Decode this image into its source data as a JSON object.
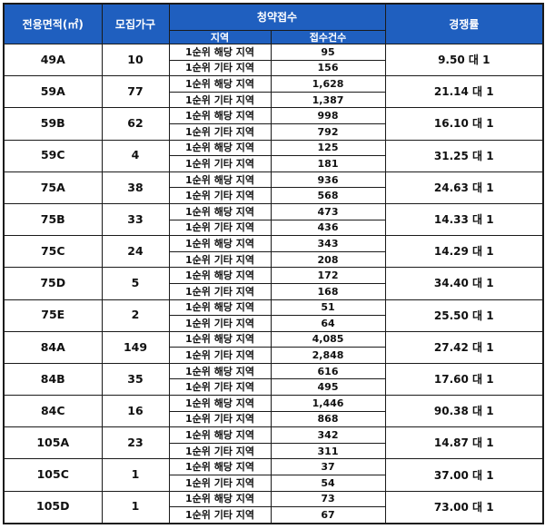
{
  "headers": {
    "area": "전용면적(㎡)",
    "households": "모집가구",
    "subscription": "청약접수",
    "region": "지역",
    "applications": "접수건수",
    "competition": "경쟁률"
  },
  "rows": [
    {
      "type": "49A",
      "households": "10",
      "local_label": "1순위 해당 지역",
      "local_count": "95",
      "other_label": "1순위 기타 지역",
      "other_count": "156",
      "rate": "9.50 대 1"
    },
    {
      "type": "59A",
      "households": "77",
      "local_label": "1순위 해당 지역",
      "local_count": "1,628",
      "other_label": "1순위 기타 지역",
      "other_count": "1,387",
      "rate": "21.14 대 1"
    },
    {
      "type": "59B",
      "households": "62",
      "local_label": "1순위 해당 지역",
      "local_count": "998",
      "other_label": "1순위 기타 지역",
      "other_count": "792",
      "rate": "16.10 대 1"
    },
    {
      "type": "59C",
      "households": "4",
      "local_label": "1순위 해당 지역",
      "local_count": "125",
      "other_label": "1순위 기타 지역",
      "other_count": "181",
      "rate": "31.25 대 1"
    },
    {
      "type": "75A",
      "households": "38",
      "local_label": "1순위 해당 지역",
      "local_count": "936",
      "other_label": "1순위 기타 지역",
      "other_count": "568",
      "rate": "24.63 대 1"
    },
    {
      "type": "75B",
      "households": "33",
      "local_label": "1순위 해당 지역",
      "local_count": "473",
      "other_label": "1순위 기타 지역",
      "other_count": "436",
      "rate": "14.33 대 1"
    },
    {
      "type": "75C",
      "households": "24",
      "local_label": "1순위 해당 지역",
      "local_count": "343",
      "other_label": "1순위 기타 지역",
      "other_count": "208",
      "rate": "14.29 대 1"
    },
    {
      "type": "75D",
      "households": "5",
      "local_label": "1순위 해당 지역",
      "local_count": "172",
      "other_label": "1순위 기타 지역",
      "other_count": "168",
      "rate": "34.40 대 1"
    },
    {
      "type": "75E",
      "households": "2",
      "local_label": "1순위 해당 지역",
      "local_count": "51",
      "other_label": "1순위 기타 지역",
      "other_count": "64",
      "rate": "25.50 대 1"
    },
    {
      "type": "84A",
      "households": "149",
      "local_label": "1순위 해당 지역",
      "local_count": "4,085",
      "other_label": "1순위 기타 지역",
      "other_count": "2,848",
      "rate": "27.42 대 1"
    },
    {
      "type": "84B",
      "households": "35",
      "local_label": "1순위 해당 지역",
      "local_count": "616",
      "other_label": "1순위 기타 지역",
      "other_count": "495",
      "rate": "17.60 대 1"
    },
    {
      "type": "84C",
      "households": "16",
      "local_label": "1순위 해당 지역",
      "local_count": "1,446",
      "other_label": "1순위 기타 지역",
      "other_count": "868",
      "rate": "90.38 대 1"
    },
    {
      "type": "105A",
      "households": "23",
      "local_label": "1순위 해당 지역",
      "local_count": "342",
      "other_label": "1순위 기타 지역",
      "other_count": "311",
      "rate": "14.87 대 1"
    },
    {
      "type": "105C",
      "households": "1",
      "local_label": "1순위 해당 지역",
      "local_count": "37",
      "other_label": "1순위 기타 지역",
      "other_count": "54",
      "rate": "37.00 대 1"
    },
    {
      "type": "105D",
      "households": "1",
      "local_label": "1순위 해당 지역",
      "local_count": "73",
      "other_label": "1순위 기타 지역",
      "other_count": "67",
      "rate": "73.00 대 1"
    }
  ],
  "colors": {
    "header_bg": "#1f5fbf",
    "header_text": "#ffffff",
    "grid": "#1a1a1a"
  }
}
